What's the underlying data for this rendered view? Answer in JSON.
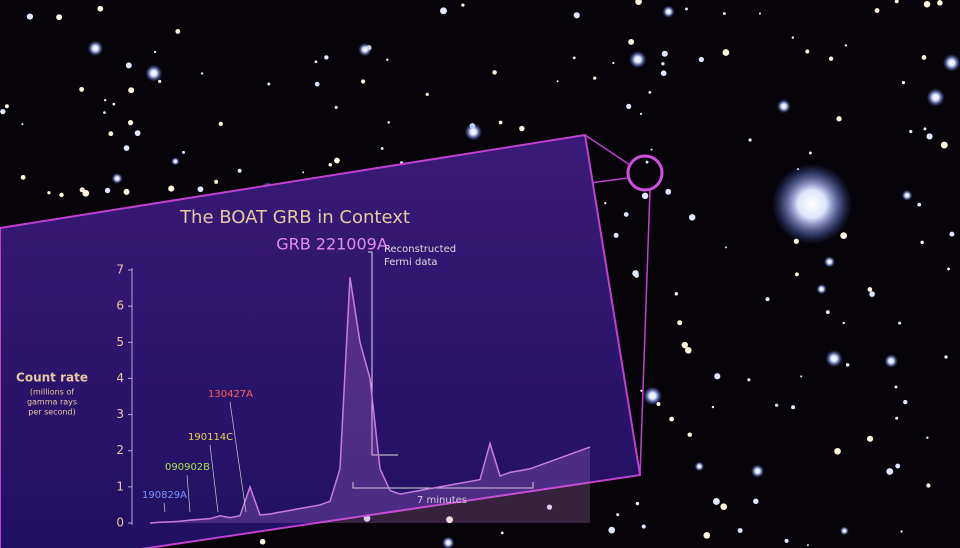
{
  "chart_data": {
    "type": "line",
    "title": "The BOAT GRB in Context",
    "y_label": "Count rate",
    "y_label_note": [
      "(millions of",
      "gamma rays",
      "per second)"
    ],
    "ylim": [
      0,
      7
    ],
    "yticks": [
      0,
      1,
      2,
      3,
      4,
      5,
      6,
      7
    ],
    "series": [
      {
        "color": "#c77de0",
        "values": [
          0.0,
          0.02,
          0.03,
          0.05,
          0.08,
          0.1,
          0.12,
          0.2,
          0.15,
          0.2,
          1.0,
          0.22,
          0.25,
          0.3,
          0.35,
          0.4,
          0.45,
          0.5,
          0.6,
          1.5,
          6.8,
          5.0,
          4.0,
          1.5,
          0.9,
          0.8,
          0.85,
          0.9,
          0.95,
          1.0,
          1.05,
          1.1,
          1.15,
          1.2,
          2.2,
          1.3,
          1.4,
          1.45,
          1.5,
          1.6,
          1.7,
          1.8,
          1.9,
          2.0,
          2.1
        ]
      }
    ],
    "bursts": [
      {
        "name": "190829A",
        "color": "#7b93ff"
      },
      {
        "name": "090902B",
        "color": "#a6e14e"
      },
      {
        "name": "190114C",
        "color": "#ecd54b"
      },
      {
        "name": "130427A",
        "color": "#ff5c5c"
      }
    ],
    "highlight": {
      "name": "GRB 221009A",
      "color": "#e58cf0"
    },
    "annotations": [
      "Reconstructed",
      "Fermi data",
      "7 minutes"
    ]
  }
}
